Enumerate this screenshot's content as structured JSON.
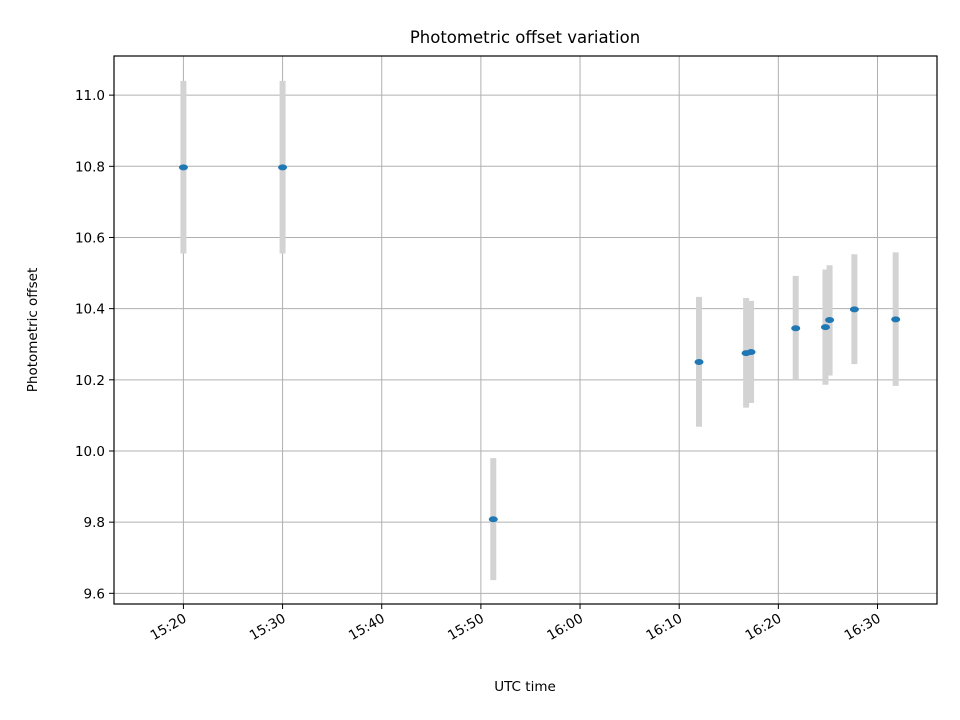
{
  "chart_data": {
    "type": "scatter",
    "title": "Photometric offset variation",
    "xlabel": "UTC time",
    "ylabel": "Photometric offset",
    "xlim": [
      "15:13",
      "16:36"
    ],
    "ylim": [
      9.57,
      11.11
    ],
    "x_ticks": [
      "15:20",
      "15:30",
      "15:40",
      "15:50",
      "16:00",
      "16:10",
      "16:20",
      "16:30"
    ],
    "y_ticks": [
      "9.6",
      "9.8",
      "10.0",
      "10.2",
      "10.4",
      "10.6",
      "10.8",
      "11.0"
    ],
    "grid": true,
    "points": [
      {
        "time": "15:20:00",
        "value": 10.797,
        "err_low": 10.555,
        "err_high": 11.04
      },
      {
        "time": "15:30:00",
        "value": 10.797,
        "err_low": 10.555,
        "err_high": 11.04
      },
      {
        "time": "15:51:15",
        "value": 9.808,
        "err_low": 9.637,
        "err_high": 9.98
      },
      {
        "time": "16:12:00",
        "value": 10.25,
        "err_low": 10.068,
        "err_high": 10.433
      },
      {
        "time": "16:16:45",
        "value": 10.275,
        "err_low": 10.122,
        "err_high": 10.43
      },
      {
        "time": "16:17:15",
        "value": 10.278,
        "err_low": 10.135,
        "err_high": 10.422
      },
      {
        "time": "16:21:45",
        "value": 10.345,
        "err_low": 10.2,
        "err_high": 10.492
      },
      {
        "time": "16:24:45",
        "value": 10.348,
        "err_low": 10.186,
        "err_high": 10.51
      },
      {
        "time": "16:25:10",
        "value": 10.368,
        "err_low": 10.212,
        "err_high": 10.522
      },
      {
        "time": "16:27:40",
        "value": 10.398,
        "err_low": 10.244,
        "err_high": 10.553
      },
      {
        "time": "16:31:50",
        "value": 10.37,
        "err_low": 10.183,
        "err_high": 10.558
      }
    ]
  }
}
